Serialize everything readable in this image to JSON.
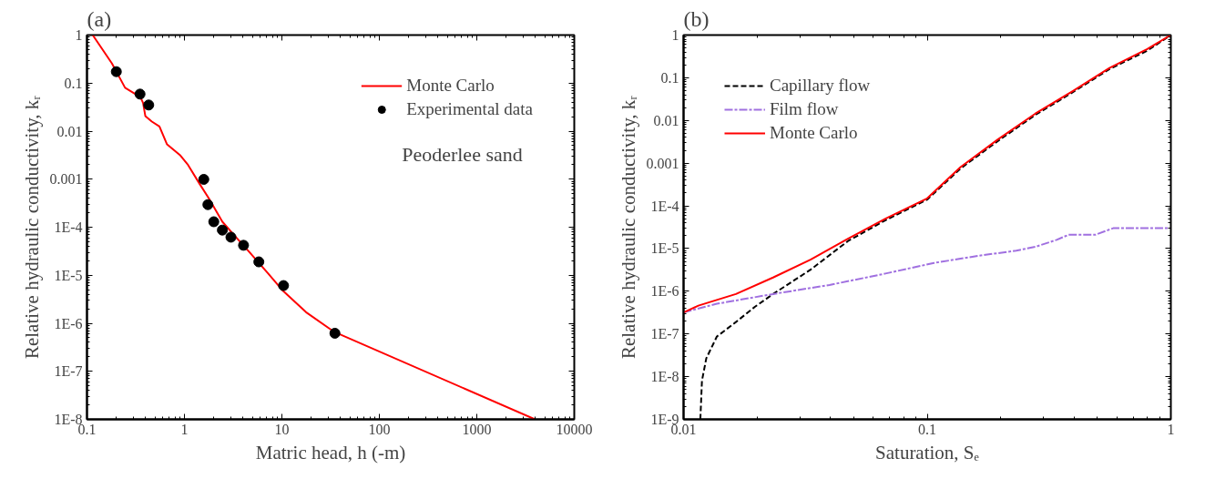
{
  "chart_data": [
    {
      "type": "line",
      "title": "(a)",
      "xlabel": "Matric head, h (-m)",
      "ylabel": "Relative hydraulic conductivity, kᵣ",
      "log": "xy",
      "legend": "top right",
      "grid": false,
      "xlim": [
        0.1,
        10000
      ],
      "ylim": [
        1e-08,
        1
      ],
      "xticks": [
        0.1,
        1,
        10,
        100,
        1000,
        10000
      ],
      "yticks": [
        1,
        0.1,
        0.01,
        0.001,
        {
          "value": 0.0001,
          "label": "1E-4"
        },
        {
          "value": 1e-05,
          "label": "1E-5"
        },
        {
          "value": 1e-06,
          "label": "1E-6"
        },
        {
          "value": 1e-07,
          "label": "1E-7"
        },
        {
          "value": 1e-08,
          "label": "1E-8"
        }
      ],
      "annotations": [
        "Peoderlee sand"
      ],
      "series": [
        {
          "name": "Monte Carlo",
          "color": "#ff0000",
          "line_style": "solid",
          "x": [
            0.1145,
            0.18,
            0.246,
            0.353,
            0.376,
            0.397,
            0.463,
            0.554,
            0.663,
            0.91,
            1.09,
            1.43,
            1.79,
            2.45,
            3.2,
            4.6,
            7.2,
            10.3,
            17.7,
            33.4,
            36.5,
            3955
          ],
          "values": [
            1,
            0.258,
            0.08,
            0.051,
            0.039,
            0.0206,
            0.0158,
            0.0125,
            0.0053,
            0.0031,
            0.00197,
            0.0008,
            0.00039,
            0.00013,
            7e-05,
            3.1e-05,
            1.1e-05,
            4.7e-06,
            1.7e-06,
            6.9e-07,
            6.3e-07,
            1e-08
          ]
        },
        {
          "name": "Experimental data",
          "type": "scatter",
          "color": "#000000",
          "marker": "circle",
          "x": [
            0.2,
            0.35,
            0.43,
            1.58,
            1.74,
            2.0,
            2.45,
            3.0,
            4.04,
            5.8,
            10.4,
            35
          ],
          "values": [
            0.173,
            0.059,
            0.035,
            0.00099,
            0.000295,
            0.00013,
            8.7e-05,
            6.2e-05,
            4.2e-05,
            1.9e-05,
            6.1e-06,
            6.2e-07
          ]
        }
      ]
    },
    {
      "type": "line",
      "title": "(b)",
      "xlabel": "Saturation, Sₑ",
      "ylabel": "Relative hydraulic conductivity, kᵣ",
      "log": "xy",
      "legend": "top left",
      "grid": false,
      "xlim": [
        0.01,
        1
      ],
      "ylim": [
        1e-09,
        1
      ],
      "xticks": [
        0.01,
        0.1,
        1
      ],
      "yticks": [
        1,
        0.1,
        0.01,
        0.001,
        {
          "value": 0.0001,
          "label": "1E-4"
        },
        {
          "value": 1e-05,
          "label": "1E-5"
        },
        {
          "value": 1e-06,
          "label": "1E-6"
        },
        {
          "value": 1e-07,
          "label": "1E-7"
        },
        {
          "value": 1e-08,
          "label": "1E-8"
        },
        {
          "value": 1e-09,
          "label": "1E-9"
        }
      ],
      "series": [
        {
          "name": "Capillary flow",
          "color": "#000000",
          "line_style": "dashed",
          "x": [
            0.01172,
            0.0119,
            0.0124,
            0.0137,
            0.0164,
            0.0196,
            0.0233,
            0.0332,
            0.0473,
            0.0674,
            0.1,
            0.137,
            0.195,
            0.278,
            0.394,
            0.56,
            0.8,
            1
          ],
          "values": [
            1e-09,
            8.1e-09,
            2.7e-08,
            8.7e-08,
            1.9e-07,
            4.3e-07,
            8.6e-07,
            3.2e-06,
            1.5e-05,
            4.6e-05,
            0.00014,
            0.00075,
            0.0033,
            0.0135,
            0.045,
            0.16,
            0.43,
            1
          ]
        },
        {
          "name": "Film flow",
          "color": "#a070e0",
          "line_style": "dashdot",
          "x": [
            0.01,
            0.0137,
            0.0233,
            0.0397,
            0.0674,
            0.1067,
            0.163,
            0.232,
            0.278,
            0.34,
            0.38,
            0.49,
            0.58,
            0.99
          ],
          "values": [
            3.2e-07,
            5.1e-07,
            8.6e-07,
            1.4e-06,
            2.6e-06,
            4.6e-06,
            6.8e-06,
            8.9e-06,
            1.1e-05,
            1.6e-05,
            2.1e-05,
            2.1e-05,
            3e-05,
            3e-05
          ]
        },
        {
          "name": "Monte Carlo",
          "color": "#ff0000",
          "line_style": "solid",
          "x": [
            0.01,
            0.0115,
            0.0164,
            0.0233,
            0.0332,
            0.0473,
            0.0674,
            0.1,
            0.137,
            0.195,
            0.278,
            0.394,
            0.56,
            0.8,
            1
          ],
          "values": [
            3.2e-07,
            4.6e-07,
            8.6e-07,
            2.1e-06,
            5.5e-06,
            1.7e-05,
            5e-05,
            0.00015,
            0.00081,
            0.0036,
            0.0145,
            0.048,
            0.17,
            0.47,
            1
          ]
        }
      ]
    }
  ]
}
